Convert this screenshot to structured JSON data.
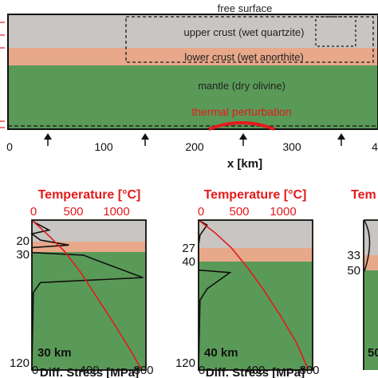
{
  "model": {
    "free_surface_label": "free surface",
    "upper_crust_label": "upper crust (wet quartzite)",
    "lower_crust_label": "lower crust (wet anorthite)",
    "mantle_label": "mantle (dry olivine)",
    "perturbation_label": "thermal perturbation",
    "x_ticks": [
      "0",
      "100",
      "200",
      "300",
      "4"
    ],
    "x_axis_label": "x [km]",
    "colors": {
      "upper_crust": "#c8c5c2",
      "lower_crust": "#e8a88a",
      "mantle": "#5a9a58",
      "perturbation": "#e31a1c"
    }
  },
  "panels_text": {
    "temp_axis_label": "Temperature [°C]",
    "temp_ticks": [
      "0",
      "500",
      "1000"
    ],
    "stress_axis_label": "Diff. Stress [MPa]",
    "stress_ticks": [
      "0",
      "400",
      "800"
    ],
    "partial_title": "Tem",
    "partial_thickness": "50",
    "p1": {
      "depth_labels": [
        "20",
        "30",
        "120"
      ],
      "thickness_label": "30 km"
    },
    "p2": {
      "depth_labels": [
        "27",
        "40",
        "120"
      ],
      "thickness_label": "40 km"
    },
    "p3": {
      "depth_labels": [
        "33",
        "50"
      ]
    }
  },
  "chart_data": [
    {
      "type": "line",
      "panel": "30 km",
      "ylim": [
        0,
        120
      ],
      "temperature": {
        "xlim": [
          0,
          1400
        ],
        "x": [
          0,
          200,
          400,
          600,
          800,
          1000,
          1200,
          1350
        ],
        "y": [
          0,
          12,
          25,
          42,
          62,
          82,
          103,
          120
        ]
      },
      "stress": {
        "xlim": [
          0,
          800
        ],
        "x": [
          0,
          20,
          120,
          0,
          60,
          260,
          0,
          0,
          0,
          360,
          520,
          780,
          60,
          10,
          0
        ],
        "y": [
          0,
          2,
          8,
          11,
          16,
          20,
          22,
          24,
          26,
          28,
          35,
          46,
          50,
          58,
          120
        ]
      }
    },
    {
      "type": "line",
      "panel": "40 km",
      "ylim": [
        0,
        120
      ],
      "temperature": {
        "xlim": [
          0,
          1400
        ],
        "x": [
          0,
          200,
          400,
          600,
          800,
          1000,
          1200,
          1350
        ],
        "y": [
          0,
          10,
          22,
          38,
          56,
          76,
          98,
          120
        ]
      },
      "stress": {
        "xlim": [
          0,
          800
        ],
        "x": [
          0,
          60,
          10,
          0,
          0,
          220,
          60,
          10,
          0
        ],
        "y": [
          0,
          4,
          12,
          20,
          40,
          42,
          55,
          64,
          120
        ]
      }
    }
  ]
}
